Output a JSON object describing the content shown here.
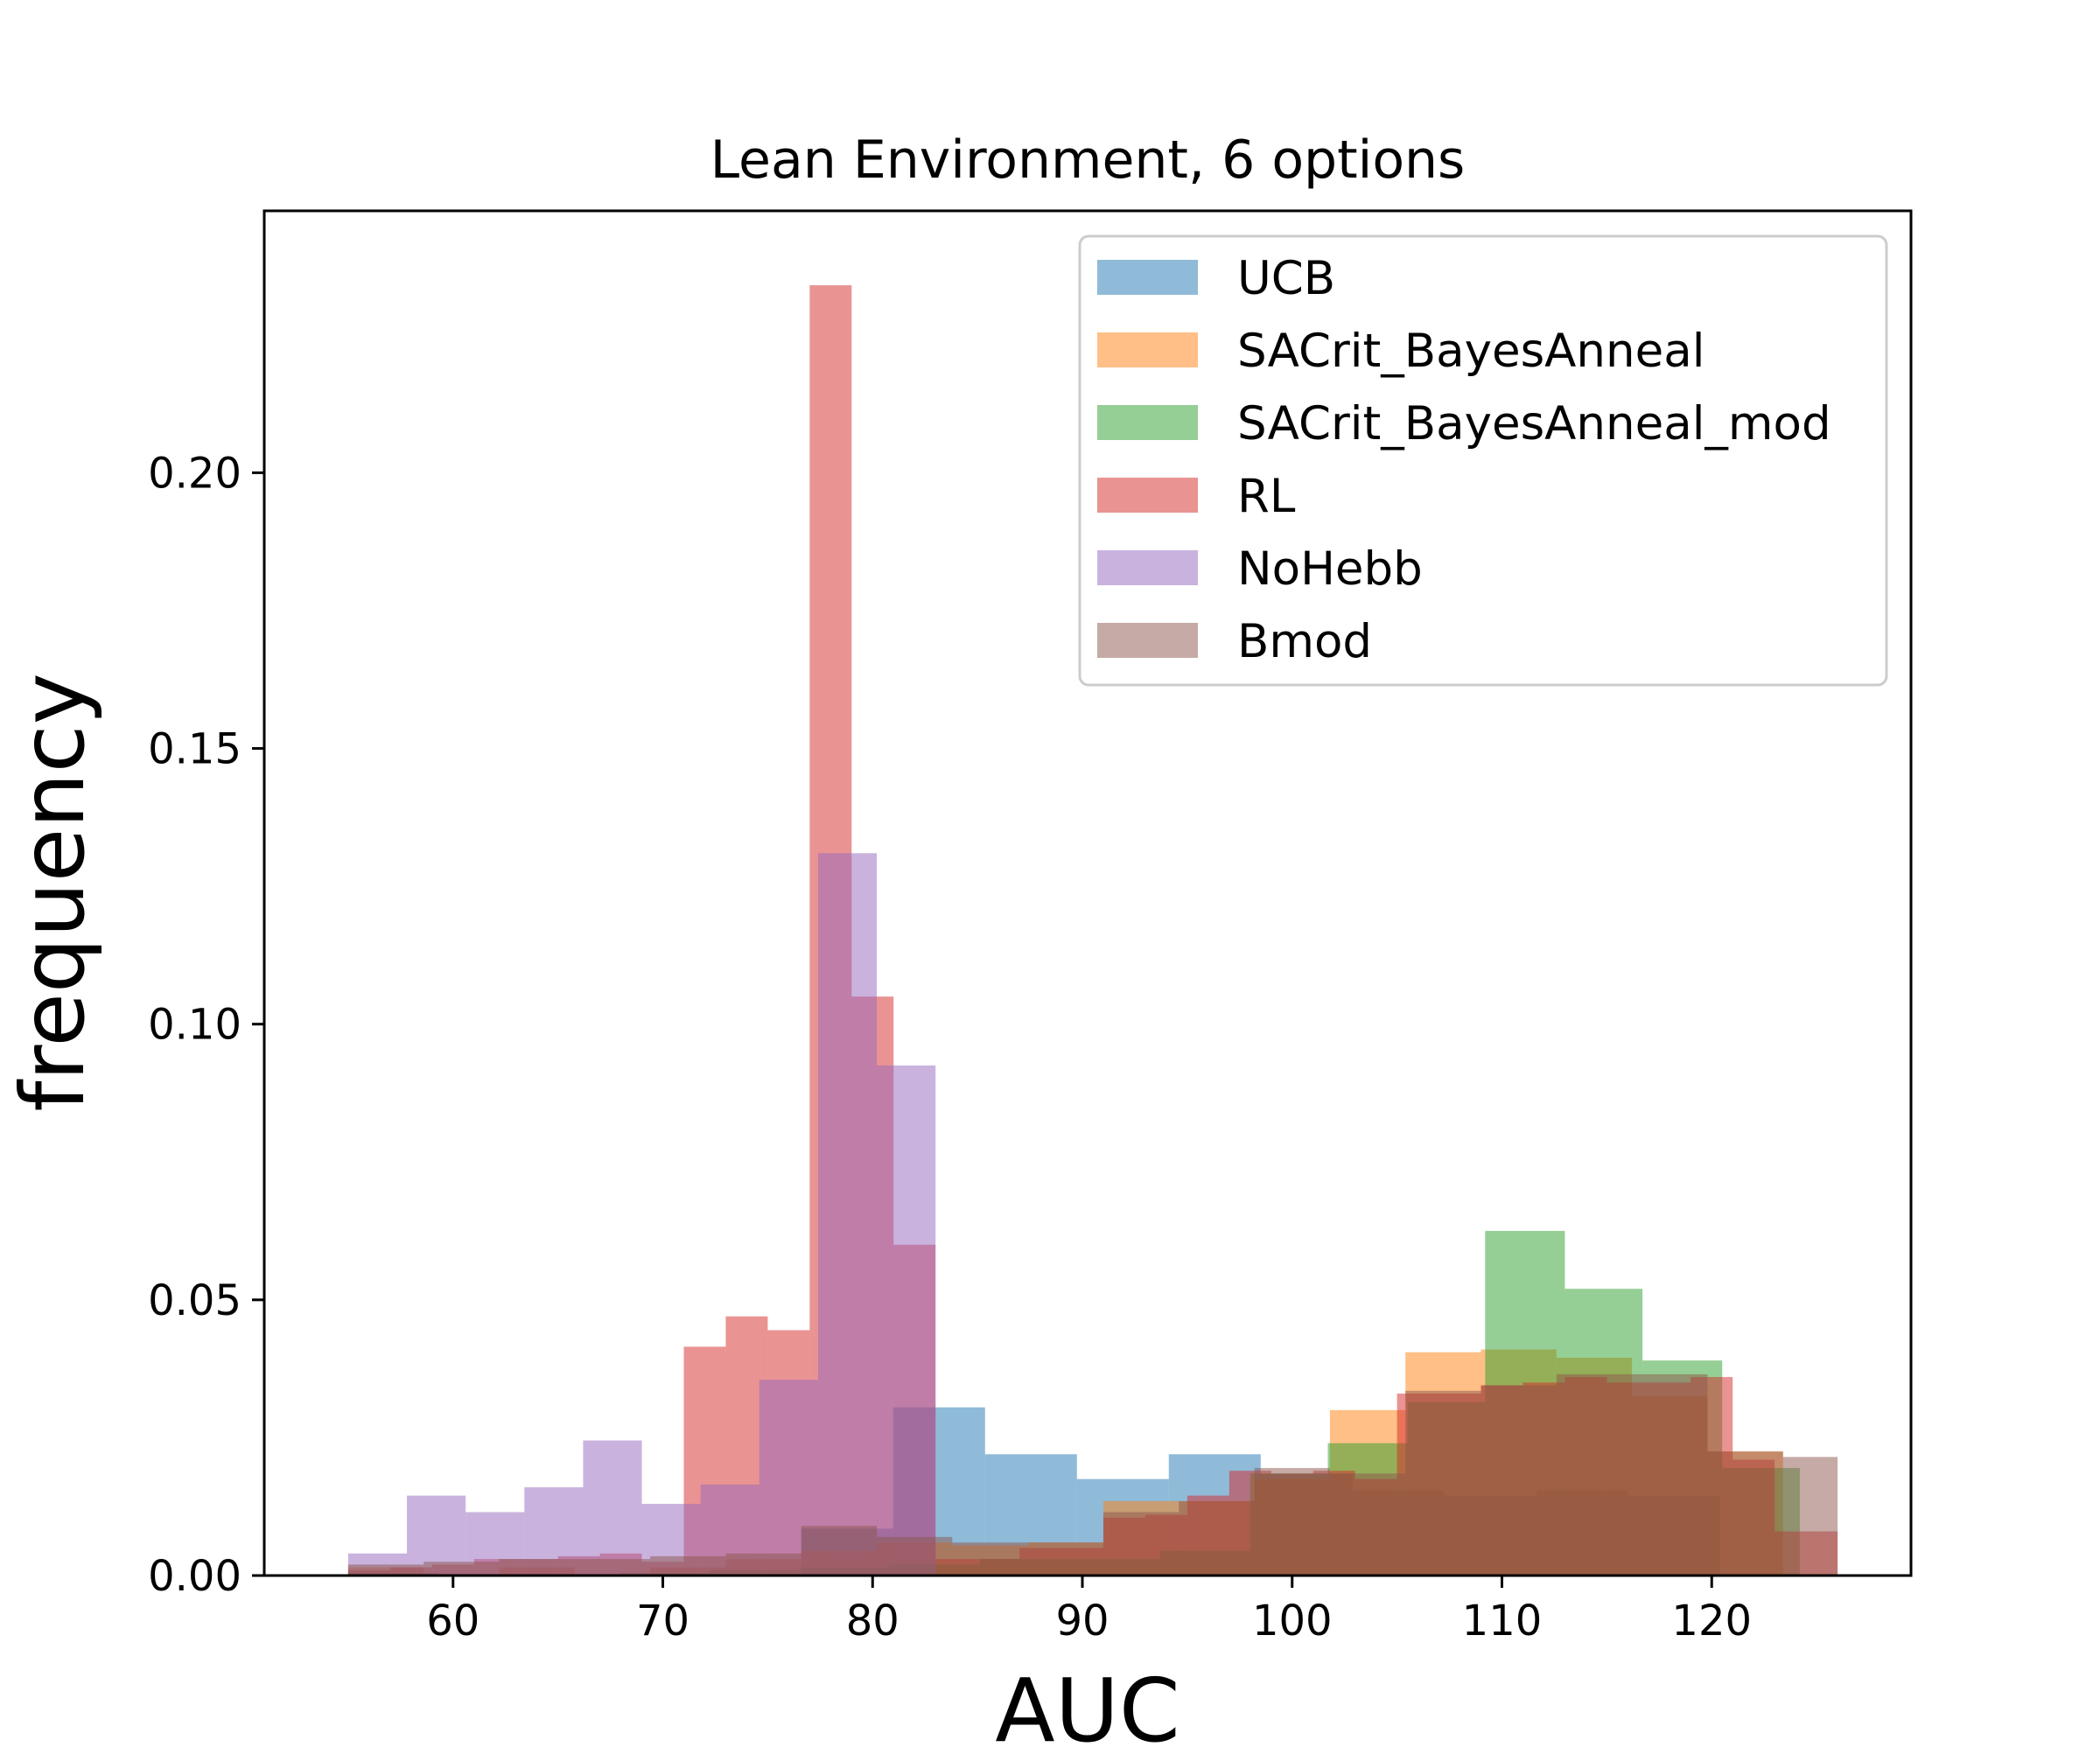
{
  "chart_data": {
    "type": "histogram",
    "title": "Lean Environment, 6 options",
    "xlabel": "AUC",
    "ylabel": "frequency",
    "xlim": [
      51,
      129.5
    ],
    "ylim": [
      0,
      0.2475
    ],
    "xticks": [
      60,
      70,
      80,
      90,
      100,
      110,
      120
    ],
    "yticks": [
      0.0,
      0.05,
      0.1,
      0.15,
      0.2
    ],
    "xtick_labels": [
      "60",
      "70",
      "80",
      "90",
      "100",
      "110",
      "120"
    ],
    "ytick_labels": [
      "0.00",
      "0.05",
      "0.10",
      "0.15",
      "0.20"
    ],
    "legend_position": "upper right",
    "alpha": 0.5,
    "series": [
      {
        "name": "UCB",
        "color": "#1f77b4",
        "edges": [
          76.6,
          80.98,
          85.36,
          89.74,
          94.12,
          98.5,
          102.88,
          107.26,
          111.64,
          116.02,
          120.4
        ],
        "values": [
          0.0085,
          0.0305,
          0.022,
          0.0175,
          0.022,
          0.0185,
          0.0155,
          0.0145,
          0.0155,
          0.0145,
          0.0085
        ]
      },
      {
        "name": "SACrit_BayesAnneal",
        "color": "#ff7f0e",
        "edges": [
          55.0,
          58.6,
          62.2,
          65.8,
          69.4,
          73.0,
          76.6,
          80.2,
          83.8,
          87.4,
          91.0,
          94.6,
          98.2,
          101.8,
          105.4,
          109.0,
          112.6,
          116.2,
          119.8,
          123.4
        ],
        "values": [
          0.0015,
          0.0,
          0.0015,
          0.0,
          0.0015,
          0.003,
          0.0045,
          0.006,
          0.0055,
          0.006,
          0.0135,
          0.0135,
          0.0175,
          0.03,
          0.0405,
          0.041,
          0.0395,
          0.0325,
          0.0225,
          0.0075
        ]
      },
      {
        "name": "SACrit_BayesAnneal_mod",
        "color": "#2ca02c",
        "edges": [
          55.0,
          59.3,
          63.6,
          67.9,
          72.2,
          76.5,
          80.8,
          85.1,
          89.4,
          93.7,
          98.0,
          101.7,
          105.5,
          109.2,
          113.0,
          116.7,
          120.5,
          124.2
        ],
        "values": [
          0.0005,
          0.0,
          0.0,
          0.0005,
          0.001,
          0.0015,
          0.002,
          0.003,
          0.003,
          0.0045,
          0.0185,
          0.024,
          0.0315,
          0.0625,
          0.052,
          0.039,
          0.0195,
          0.0075
        ]
      },
      {
        "name": "RL",
        "color": "#d62728",
        "edges": [
          55.0,
          57.0,
          59.0,
          61.0,
          63.0,
          65.0,
          67.0,
          69.0,
          71.0,
          73.0,
          75.0,
          77.0,
          79.0,
          81.0,
          83.0,
          85.0,
          87.0,
          89.0,
          91.0,
          93.0,
          95.0,
          97.0,
          99.0,
          101.0,
          103.0,
          105.0,
          107.0,
          109.0,
          111.0,
          113.0,
          115.0,
          117.0,
          119.0,
          121.0,
          123.0,
          125.0,
          126.0
        ],
        "values": [
          0.001,
          0.0015,
          0.002,
          0.003,
          0.003,
          0.0035,
          0.004,
          0.0025,
          0.0415,
          0.047,
          0.0445,
          0.234,
          0.105,
          0.06,
          0.003,
          0.003,
          0.005,
          0.005,
          0.0105,
          0.011,
          0.0145,
          0.019,
          0.0185,
          0.019,
          0.0175,
          0.033,
          0.033,
          0.0345,
          0.035,
          0.036,
          0.035,
          0.035,
          0.036,
          0.021,
          0.008,
          0.008
        ]
      },
      {
        "name": "NoHebb",
        "color": "#9467bd",
        "edges": [
          55.0,
          57.8,
          60.6,
          63.4,
          66.2,
          69.0,
          71.8,
          74.6,
          77.4,
          80.2,
          83.0
        ],
        "values": [
          0.004,
          0.0145,
          0.0115,
          0.016,
          0.0245,
          0.013,
          0.0165,
          0.0355,
          0.131,
          0.0925
        ]
      },
      {
        "name": "Bmod",
        "color": "#8c564b",
        "edges": [
          55.0,
          58.6,
          62.2,
          65.8,
          69.4,
          73.0,
          76.6,
          80.2,
          83.8,
          87.4,
          91.0,
          94.6,
          98.2,
          101.8,
          105.4,
          109.0,
          112.6,
          116.2,
          119.8,
          123.4,
          126.0
        ],
        "values": [
          0.002,
          0.0025,
          0.003,
          0.003,
          0.0035,
          0.004,
          0.009,
          0.007,
          0.006,
          0.006,
          0.0115,
          0.0135,
          0.0195,
          0.0185,
          0.0335,
          0.0345,
          0.0365,
          0.0365,
          0.0225,
          0.0215
        ]
      }
    ]
  }
}
